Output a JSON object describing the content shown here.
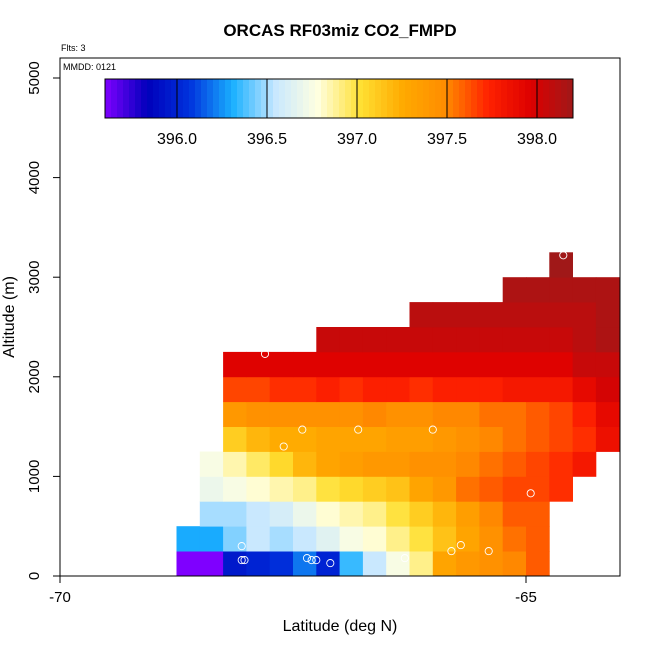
{
  "chart_data": {
    "type": "heatmap",
    "title": "ORCAS RF03miz CO2_FMPD",
    "xlabel": "Latitude (deg N)",
    "ylabel": "Altitude (m)",
    "flights_note": "Flts: 3",
    "date_note": "MMDD: 0121",
    "xlim": [
      -70,
      -64
    ],
    "ylim": [
      0,
      5200
    ],
    "x_ticks": [
      -70,
      -65
    ],
    "x_tick_labels": [
      "-70",
      "-65"
    ],
    "y_ticks": [
      0,
      1000,
      2000,
      3000,
      4000,
      5000
    ],
    "y_tick_labels": [
      "0",
      "1000",
      "2000",
      "3000",
      "4000",
      "5000"
    ],
    "colorbar": {
      "min": 395.6,
      "max": 398.2,
      "ticks": [
        396.0,
        396.5,
        397.0,
        397.5,
        398.0
      ],
      "tick_labels": [
        "396.0",
        "396.5",
        "397.0",
        "397.5",
        "398.0"
      ],
      "stops": [
        "#7f00ff",
        "#0000bb",
        "#0033dd",
        "#1ab0ff",
        "#c8e8ff",
        "#ffffe0",
        "#ffe033",
        "#ffaa00",
        "#ff8c00",
        "#ff2200",
        "#dd0000",
        "#a01818"
      ]
    },
    "cell_width_deg": 0.25,
    "cell_height_m": 250,
    "rows": [
      {
        "bottom": 0,
        "start": -68.75,
        "values": [
          395.6,
          395.6,
          395.95,
          396.0,
          396.05,
          396.2,
          396.0,
          396.35,
          396.55,
          396.75,
          396.9,
          397.3,
          397.4,
          397.45,
          397.5,
          397.6
        ]
      },
      {
        "bottom": 250,
        "start": -68.75,
        "values": [
          396.3,
          396.3,
          396.45,
          396.55,
          396.5,
          396.55,
          396.65,
          396.75,
          396.8,
          396.9,
          397.0,
          397.15,
          397.3,
          397.45,
          397.55,
          397.6
        ]
      },
      {
        "bottom": 500,
        "start": -68.5,
        "values": [
          396.5,
          396.5,
          396.55,
          396.6,
          396.7,
          396.8,
          396.85,
          396.9,
          397.0,
          397.1,
          397.2,
          397.35,
          397.5,
          397.6,
          397.6
        ]
      },
      {
        "bottom": 750,
        "start": -68.5,
        "values": [
          396.7,
          396.75,
          396.8,
          396.85,
          396.9,
          397.0,
          397.05,
          397.1,
          397.15,
          397.3,
          397.4,
          397.55,
          397.6,
          397.65,
          397.65,
          397.7
        ]
      },
      {
        "bottom": 1000,
        "start": -68.5,
        "values": [
          396.75,
          396.85,
          396.95,
          397.05,
          397.2,
          397.3,
          397.35,
          397.4,
          397.4,
          397.45,
          397.45,
          397.5,
          397.55,
          397.6,
          397.65,
          397.7,
          397.8
        ]
      },
      {
        "bottom": 1250,
        "start": -68.25,
        "values": [
          397.1,
          397.2,
          397.25,
          397.25,
          397.3,
          397.3,
          397.3,
          397.35,
          397.35,
          397.4,
          397.45,
          397.5,
          397.55,
          397.6,
          397.65,
          397.7,
          397.85
        ]
      },
      {
        "bottom": 1500,
        "start": -68.25,
        "values": [
          397.4,
          397.45,
          397.45,
          397.45,
          397.45,
          397.45,
          397.5,
          397.45,
          397.45,
          397.5,
          397.5,
          397.55,
          397.55,
          397.6,
          397.65,
          397.75,
          397.9
        ]
      },
      {
        "bottom": 1750,
        "start": -68.25,
        "values": [
          397.65,
          397.65,
          397.7,
          397.7,
          397.75,
          397.7,
          397.75,
          397.75,
          397.7,
          397.75,
          397.75,
          397.75,
          397.8,
          397.8,
          397.8,
          397.9,
          398.0
        ]
      },
      {
        "bottom": 2000,
        "start": -68.25,
        "values": [
          397.95,
          397.95,
          397.95,
          397.95,
          397.95,
          397.95,
          397.95,
          397.95,
          397.95,
          397.95,
          397.95,
          397.95,
          397.95,
          397.95,
          397.95,
          398.05,
          398.05
        ]
      },
      {
        "bottom": 2250,
        "start": -67.25,
        "values": [
          398.05,
          398.05,
          398.05,
          398.05,
          398.05,
          398.05,
          398.05,
          398.05,
          398.05,
          398.05,
          398.05,
          398.1,
          398.15
        ]
      },
      {
        "bottom": 2500,
        "start": -66.25,
        "values": [
          398.1,
          398.1,
          398.1,
          398.1,
          398.1,
          398.1,
          398.1,
          398.1,
          398.15
        ]
      },
      {
        "bottom": 2750,
        "start": -65.25,
        "values": [
          398.15,
          398.15,
          398.15,
          398.15,
          398.15
        ]
      },
      {
        "bottom": 3000,
        "start": -64.75,
        "values": [
          398.2
        ]
      }
    ],
    "samples": [
      {
        "lat": -68.05,
        "alt": 160
      },
      {
        "lat": -68.02,
        "alt": 160
      },
      {
        "lat": -68.05,
        "alt": 300
      },
      {
        "lat": -67.35,
        "alt": 180
      },
      {
        "lat": -67.3,
        "alt": 160
      },
      {
        "lat": -67.25,
        "alt": 160
      },
      {
        "lat": -67.1,
        "alt": 130
      },
      {
        "lat": -66.3,
        "alt": 180
      },
      {
        "lat": -65.8,
        "alt": 250
      },
      {
        "lat": -65.7,
        "alt": 310
      },
      {
        "lat": -65.4,
        "alt": 250
      },
      {
        "lat": -64.95,
        "alt": 830
      },
      {
        "lat": -67.6,
        "alt": 1300
      },
      {
        "lat": -67.4,
        "alt": 1470
      },
      {
        "lat": -66.8,
        "alt": 1470
      },
      {
        "lat": -66.0,
        "alt": 1470
      },
      {
        "lat": -64.6,
        "alt": 3220
      },
      {
        "lat": -67.8,
        "alt": 2230
      }
    ]
  }
}
